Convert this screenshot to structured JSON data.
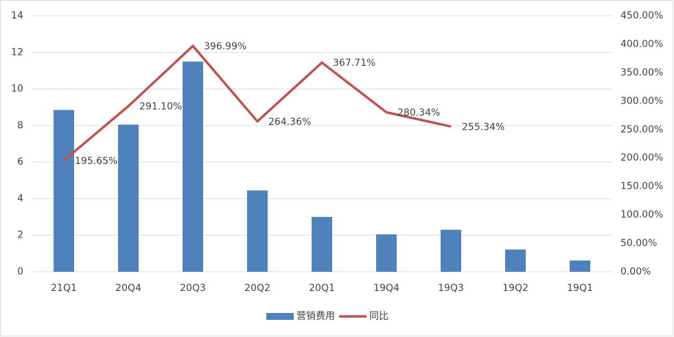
{
  "chart_data": {
    "type": "bar",
    "categories": [
      "21Q1",
      "20Q4",
      "20Q3",
      "20Q2",
      "20Q1",
      "19Q4",
      "19Q3",
      "19Q2",
      "19Q1"
    ],
    "series": [
      {
        "name": "营销费用",
        "type": "bar",
        "color": "#4f81bd",
        "values": [
          8.85,
          8.05,
          11.5,
          4.45,
          3.0,
          2.05,
          2.3,
          1.22,
          0.62
        ]
      },
      {
        "name": "同比",
        "type": "line",
        "axis": "y2",
        "color": "#c0504d",
        "values": [
          195.65,
          291.1,
          396.99,
          264.36,
          367.71,
          280.34,
          255.34,
          null,
          null
        ],
        "value_labels": [
          "195.65%",
          "291.10%",
          "396.99%",
          "264.36%",
          "367.71%",
          "280.34%",
          "255.34%",
          null,
          null
        ]
      }
    ],
    "ylim": [
      0,
      14
    ],
    "yticks": [
      0,
      2,
      4,
      6,
      8,
      10,
      12,
      14
    ],
    "y2lim": [
      0,
      450
    ],
    "y2ticks": [
      {
        "value": 0,
        "label": "0.00%"
      },
      {
        "value": 50,
        "label": "50.00%"
      },
      {
        "value": 100,
        "label": "100.00%"
      },
      {
        "value": 150,
        "label": "150.00%"
      },
      {
        "value": 200,
        "label": "200.00%"
      },
      {
        "value": 250,
        "label": "250.00%"
      },
      {
        "value": 300,
        "label": "300.00%"
      },
      {
        "value": 350,
        "label": "350.00%"
      },
      {
        "value": 400,
        "label": "400.00%"
      },
      {
        "value": 450,
        "label": "450.00%"
      }
    ],
    "grid": true,
    "legend": "bottom"
  }
}
